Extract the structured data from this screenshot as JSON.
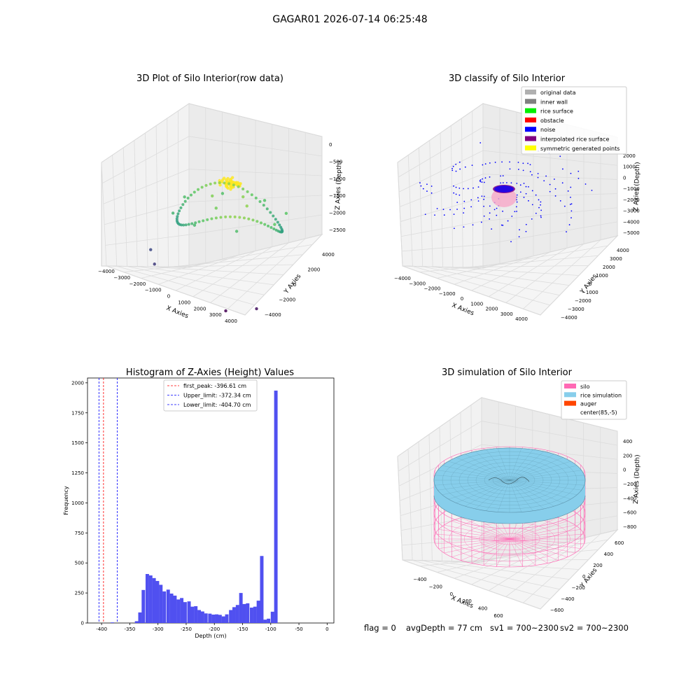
{
  "figure_title": "GAGAR01 2026-07-14 06:25:48",
  "chart_data": [
    {
      "type": "scatter",
      "title": "3D Plot of Silo Interior(row data)",
      "xlabel": "X Axies",
      "ylabel": "Y Axies",
      "zlabel": "Z Axies (Depth)",
      "x_ticks": [
        "−4000",
        "−3000",
        "−2000",
        "−1000",
        "0",
        "1000",
        "2000",
        "3000",
        "4000"
      ],
      "y_ticks": [
        "−4000",
        "−2000",
        "0",
        "2000",
        "4000"
      ],
      "z_ticks": [
        "0",
        "−500",
        "−1000",
        "−1500",
        "−2000",
        "−2500"
      ],
      "colormap": "viridis",
      "series": [
        {
          "points": [
            [
              0,
              0,
              -300
            ],
            [
              150,
              100,
              -280
            ],
            [
              -200,
              50,
              -320
            ],
            [
              300,
              -100,
              -350
            ],
            [
              -100,
              -150,
              -310
            ],
            [
              200,
              250,
              -290
            ],
            [
              2600,
              0,
              -900
            ],
            [
              0,
              2600,
              -950
            ],
            [
              -2600,
              0,
              -1000
            ],
            [
              0,
              -2600,
              -1050
            ],
            [
              1838,
              1838,
              -920
            ],
            [
              -1838,
              1838,
              -980
            ],
            [
              -1838,
              -1838,
              -1100
            ],
            [
              1838,
              -1838,
              -1000
            ],
            [
              1000,
              0,
              -700
            ],
            [
              -1000,
              0,
              -750
            ],
            [
              0,
              1000,
              -720
            ],
            [
              0,
              -1000,
              -800
            ],
            [
              -2000,
              -3000,
              -2200
            ],
            [
              -3000,
              -2000,
              -2100
            ],
            [
              3500,
              -2500,
              -2500
            ],
            [
              2500,
              -3500,
              -2600
            ]
          ]
        }
      ]
    },
    {
      "type": "scatter",
      "title": "3D classify of Silo Interior",
      "xlabel": "X Axies",
      "ylabel": "Y Axies",
      "zlabel": "Z Axies (Depth)",
      "x_ticks": [
        "−4000",
        "−3000",
        "−2000",
        "−1000",
        "0",
        "1000",
        "2000",
        "3000",
        "4000"
      ],
      "y_ticks": [
        "−4000",
        "−3000",
        "−2000",
        "−1000",
        "0",
        "1000",
        "2000",
        "3000",
        "4000"
      ],
      "z_ticks": [
        "2000",
        "1000",
        "0",
        "−1000",
        "−2000",
        "−3000",
        "−4000",
        "−5000"
      ],
      "legend": {
        "placement": "top-right",
        "entries": [
          {
            "label": "original data",
            "color": "#b0b0b0"
          },
          {
            "label": "inner wall",
            "color": "#808080"
          },
          {
            "label": "rice surface",
            "color": "#00ee00"
          },
          {
            "label": "obstacle",
            "color": "#ff0000"
          },
          {
            "label": "noise",
            "color": "#0000ff"
          },
          {
            "label": "interpolated rice surface",
            "color": "#800080"
          },
          {
            "label": "symmetric generated points",
            "color": "#ffff00"
          }
        ]
      },
      "series": [
        {
          "name": "noise",
          "color": "#0000ff"
        },
        {
          "name": "interpolated rice surface",
          "color": "#800080"
        }
      ]
    },
    {
      "type": "bar",
      "title": "Histogram of Z-Axies (Height) Values",
      "xlabel": "Depth (cm)",
      "ylabel": "Frequency",
      "xlim": [
        -425,
        12
      ],
      "ylim": [
        0,
        2040
      ],
      "bin_width": 6.15,
      "color": "#5050f0",
      "x_ticks": [
        -400,
        -350,
        -300,
        -250,
        -200,
        -150,
        -100,
        -50,
        0
      ],
      "y_ticks": [
        0,
        250,
        500,
        750,
        1000,
        1250,
        1500,
        1750,
        2000
      ],
      "bins": [
        {
          "x": -384,
          "value": 5
        },
        {
          "x": -341,
          "value": 15
        },
        {
          "x": -335,
          "value": 88
        },
        {
          "x": -329,
          "value": 275
        },
        {
          "x": -322,
          "value": 408
        },
        {
          "x": -316,
          "value": 396
        },
        {
          "x": -310,
          "value": 374
        },
        {
          "x": -304,
          "value": 350
        },
        {
          "x": -298,
          "value": 318
        },
        {
          "x": -292,
          "value": 263
        },
        {
          "x": -285,
          "value": 278
        },
        {
          "x": -279,
          "value": 245
        },
        {
          "x": -273,
          "value": 228
        },
        {
          "x": -267,
          "value": 196
        },
        {
          "x": -261,
          "value": 208
        },
        {
          "x": -255,
          "value": 174
        },
        {
          "x": -248,
          "value": 180
        },
        {
          "x": -242,
          "value": 136
        },
        {
          "x": -236,
          "value": 140
        },
        {
          "x": -230,
          "value": 108
        },
        {
          "x": -224,
          "value": 96
        },
        {
          "x": -218,
          "value": 80
        },
        {
          "x": -211,
          "value": 78
        },
        {
          "x": -205,
          "value": 70
        },
        {
          "x": -199,
          "value": 72
        },
        {
          "x": -193,
          "value": 68
        },
        {
          "x": -187,
          "value": 55
        },
        {
          "x": -181,
          "value": 72
        },
        {
          "x": -174,
          "value": 108
        },
        {
          "x": -168,
          "value": 132
        },
        {
          "x": -162,
          "value": 150
        },
        {
          "x": -156,
          "value": 250
        },
        {
          "x": -150,
          "value": 158
        },
        {
          "x": -144,
          "value": 164
        },
        {
          "x": -137,
          "value": 128
        },
        {
          "x": -131,
          "value": 136
        },
        {
          "x": -125,
          "value": 186
        },
        {
          "x": -119,
          "value": 558
        },
        {
          "x": -113,
          "value": 28
        },
        {
          "x": -107,
          "value": 36
        },
        {
          "x": -100,
          "value": 94
        },
        {
          "x": -94,
          "value": 1935
        }
      ],
      "vlines": [
        {
          "label": "first_peak: -396.61 cm",
          "x": -396.61,
          "color": "#ff0000"
        },
        {
          "label": "Upper_limit: -372.34 cm",
          "x": -372.34,
          "color": "#0000ff"
        },
        {
          "label": "Lower_limit: -404.70 cm",
          "x": -404.7,
          "color": "#0000ff"
        }
      ],
      "legend": {
        "placement": "top-center"
      }
    },
    {
      "type": "area",
      "title": "3D simulation of Silo Interior",
      "xlabel": "X Axies",
      "ylabel": "Y Axies",
      "zlabel": "Z Axies (Depth)",
      "x_ticks": [
        "−400",
        "−200",
        "0",
        "200",
        "400",
        "600"
      ],
      "y_ticks": [
        "−600",
        "−400",
        "−200",
        "0",
        "200",
        "400",
        "600"
      ],
      "z_ticks": [
        "400",
        "200",
        "0",
        "−200",
        "−400",
        "−600",
        "−800"
      ],
      "legend": {
        "placement": "top-right",
        "entries": [
          {
            "label": "silo",
            "color": "#ff69b4"
          },
          {
            "label": "rice simulation",
            "color": "#87ceeb"
          },
          {
            "label": "auger",
            "color": "#ff4500"
          },
          {
            "label": "center(85,-5)",
            "color": ""
          }
        ]
      }
    }
  ],
  "status_line": {
    "flag": "flag = 0",
    "avg_depth": "avgDepth = 77 cm",
    "sv1": "sv1 = 700~2300",
    "sv2": "sv2 = 700~2300"
  }
}
